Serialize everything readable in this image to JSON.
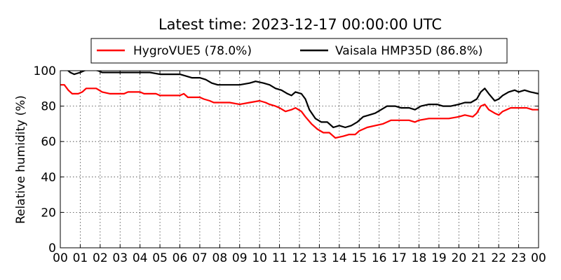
{
  "chart_data": {
    "type": "line",
    "title": "Latest time: 2023-12-17 00:00:00 UTC",
    "xlabel": "",
    "ylabel": "Relative humidity (%)",
    "xlim": [
      0,
      24
    ],
    "ylim": [
      0,
      100
    ],
    "x_tick_labels": [
      "00",
      "01",
      "02",
      "03",
      "04",
      "05",
      "06",
      "07",
      "08",
      "09",
      "10",
      "11",
      "12",
      "13",
      "14",
      "15",
      "16",
      "17",
      "18",
      "19",
      "20",
      "21",
      "22",
      "23",
      "00"
    ],
    "y_ticks": [
      0,
      20,
      40,
      60,
      80,
      100
    ],
    "grid": true,
    "legend_position": "top",
    "series": [
      {
        "name": "HygroVUE5 (78.0%)",
        "color": "#ff0000",
        "points": [
          [
            0,
            92
          ],
          [
            0.2,
            92
          ],
          [
            0.4,
            89
          ],
          [
            0.6,
            87
          ],
          [
            0.9,
            87
          ],
          [
            1.1,
            88
          ],
          [
            1.3,
            90
          ],
          [
            1.8,
            90
          ],
          [
            2.1,
            88
          ],
          [
            2.5,
            87
          ],
          [
            3.2,
            87
          ],
          [
            3.4,
            88
          ],
          [
            4.0,
            88
          ],
          [
            4.2,
            87
          ],
          [
            4.8,
            87
          ],
          [
            5.0,
            86
          ],
          [
            6.0,
            86
          ],
          [
            6.2,
            87
          ],
          [
            6.4,
            85
          ],
          [
            7.0,
            85
          ],
          [
            7.2,
            84
          ],
          [
            7.5,
            83
          ],
          [
            7.7,
            82
          ],
          [
            8.2,
            82
          ],
          [
            8.5,
            82
          ],
          [
            9.0,
            81
          ],
          [
            9.5,
            82
          ],
          [
            10.0,
            83
          ],
          [
            10.3,
            82
          ],
          [
            10.5,
            81
          ],
          [
            10.8,
            80
          ],
          [
            11.0,
            79
          ],
          [
            11.3,
            77
          ],
          [
            11.6,
            78
          ],
          [
            11.8,
            79
          ],
          [
            12.1,
            77
          ],
          [
            12.3,
            74
          ],
          [
            12.6,
            70
          ],
          [
            12.9,
            67
          ],
          [
            13.2,
            65
          ],
          [
            13.5,
            65
          ],
          [
            13.8,
            62
          ],
          [
            14.2,
            63
          ],
          [
            14.5,
            64
          ],
          [
            14.8,
            64
          ],
          [
            15.0,
            66
          ],
          [
            15.4,
            68
          ],
          [
            15.8,
            69
          ],
          [
            16.2,
            70
          ],
          [
            16.6,
            72
          ],
          [
            17.0,
            72
          ],
          [
            17.5,
            72
          ],
          [
            17.8,
            71
          ],
          [
            18.0,
            72
          ],
          [
            18.5,
            73
          ],
          [
            19.0,
            73
          ],
          [
            19.5,
            73
          ],
          [
            20.0,
            74
          ],
          [
            20.3,
            75
          ],
          [
            20.7,
            74
          ],
          [
            20.9,
            76
          ],
          [
            21.1,
            80
          ],
          [
            21.3,
            81
          ],
          [
            21.5,
            78
          ],
          [
            21.8,
            76
          ],
          [
            22.0,
            75
          ],
          [
            22.2,
            77
          ],
          [
            22.6,
            79
          ],
          [
            23.0,
            79
          ],
          [
            23.4,
            79
          ],
          [
            23.7,
            78
          ],
          [
            24,
            78
          ]
        ]
      },
      {
        "name": "Vaisala HMP35D (86.8%)",
        "color": "#000000",
        "points": [
          [
            0,
            102
          ],
          [
            0.3,
            101
          ],
          [
            0.5,
            99
          ],
          [
            0.7,
            98
          ],
          [
            1.0,
            99
          ],
          [
            1.2,
            100
          ],
          [
            1.5,
            101
          ],
          [
            1.9,
            100
          ],
          [
            2.1,
            99
          ],
          [
            2.5,
            99
          ],
          [
            3.0,
            99
          ],
          [
            3.5,
            99
          ],
          [
            4.0,
            99
          ],
          [
            4.5,
            99
          ],
          [
            5.0,
            98
          ],
          [
            5.5,
            98
          ],
          [
            6.0,
            98
          ],
          [
            6.3,
            97
          ],
          [
            6.6,
            96
          ],
          [
            7.0,
            96
          ],
          [
            7.3,
            95
          ],
          [
            7.6,
            93
          ],
          [
            7.9,
            92
          ],
          [
            8.3,
            92
          ],
          [
            8.7,
            92
          ],
          [
            9.0,
            92
          ],
          [
            9.5,
            93
          ],
          [
            9.8,
            94
          ],
          [
            10.2,
            93
          ],
          [
            10.5,
            92
          ],
          [
            10.8,
            90
          ],
          [
            11.1,
            89
          ],
          [
            11.4,
            87
          ],
          [
            11.6,
            86
          ],
          [
            11.8,
            88
          ],
          [
            12.1,
            87
          ],
          [
            12.3,
            84
          ],
          [
            12.5,
            78
          ],
          [
            12.8,
            73
          ],
          [
            13.1,
            71
          ],
          [
            13.4,
            71
          ],
          [
            13.7,
            68
          ],
          [
            14.0,
            69
          ],
          [
            14.3,
            68
          ],
          [
            14.6,
            69
          ],
          [
            14.9,
            71
          ],
          [
            15.2,
            74
          ],
          [
            15.5,
            75
          ],
          [
            15.8,
            76
          ],
          [
            16.1,
            78
          ],
          [
            16.4,
            80
          ],
          [
            16.8,
            80
          ],
          [
            17.1,
            79
          ],
          [
            17.5,
            79
          ],
          [
            17.8,
            78
          ],
          [
            18.1,
            80
          ],
          [
            18.5,
            81
          ],
          [
            18.9,
            81
          ],
          [
            19.2,
            80
          ],
          [
            19.6,
            80
          ],
          [
            20.0,
            81
          ],
          [
            20.3,
            82
          ],
          [
            20.6,
            82
          ],
          [
            20.9,
            84
          ],
          [
            21.1,
            88
          ],
          [
            21.3,
            90
          ],
          [
            21.5,
            87
          ],
          [
            21.8,
            83
          ],
          [
            22.0,
            84
          ],
          [
            22.2,
            86
          ],
          [
            22.5,
            88
          ],
          [
            22.8,
            89
          ],
          [
            23.0,
            88
          ],
          [
            23.3,
            89
          ],
          [
            23.6,
            88
          ],
          [
            24,
            87
          ]
        ]
      }
    ]
  }
}
